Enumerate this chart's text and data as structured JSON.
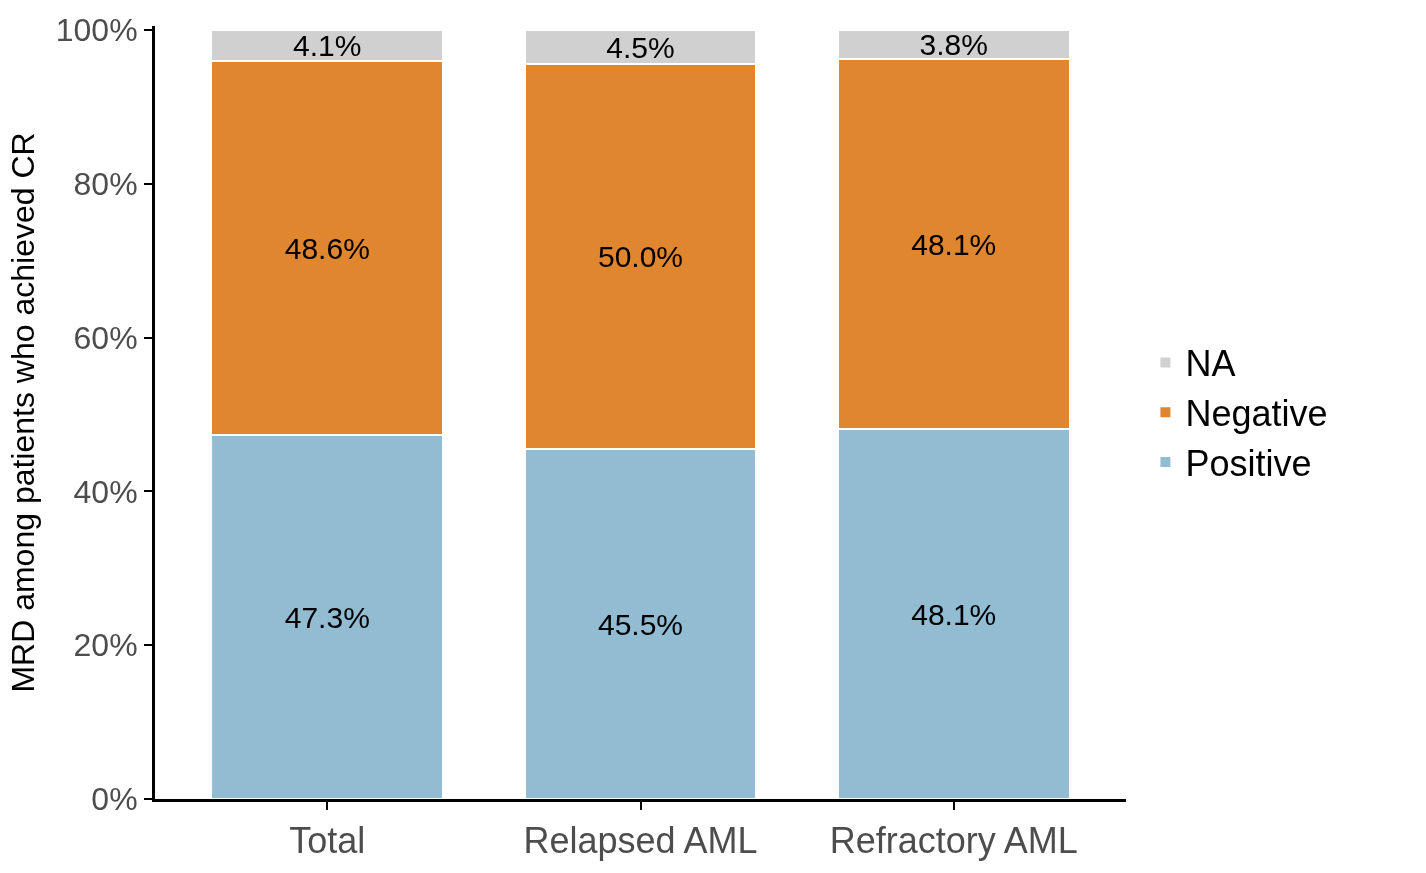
{
  "chart_data": {
    "type": "bar",
    "stacked": true,
    "ylabel": "MRD among patients who achieved CR",
    "categories": [
      "Total",
      "Relapsed AML",
      "Refractory AML"
    ],
    "series": [
      {
        "name": "Positive",
        "color": "#91bcd2",
        "values": [
          47.3,
          45.5,
          48.1
        ],
        "value_labels": [
          "47.3%",
          "45.5%",
          "48.1%"
        ]
      },
      {
        "name": "Negative",
        "color": "#e0862f",
        "values": [
          48.6,
          50.0,
          48.1
        ],
        "value_labels": [
          "48.6%",
          "50.0%",
          "48.1%"
        ]
      },
      {
        "name": "NA",
        "color": "#d0d0d0",
        "values": [
          4.1,
          4.5,
          3.8
        ],
        "value_labels": [
          "4.1%",
          "4.5%",
          "3.8%"
        ]
      }
    ],
    "ylim": [
      0,
      100.5
    ],
    "yticks": [
      {
        "value": 0,
        "label": "0%"
      },
      {
        "value": 20,
        "label": "20%"
      },
      {
        "value": 40,
        "label": "40%"
      },
      {
        "value": 60,
        "label": "60%"
      },
      {
        "value": 80,
        "label": "80%"
      },
      {
        "value": 100,
        "label": "100%"
      }
    ],
    "legend": "right"
  }
}
